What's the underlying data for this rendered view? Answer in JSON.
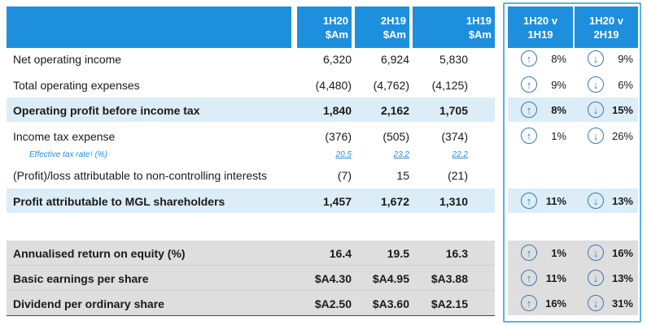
{
  "header": {
    "col1": [
      "1H20",
      "$Am"
    ],
    "col2": [
      "2H19",
      "$Am"
    ],
    "col3": [
      "1H19",
      "$Am"
    ],
    "cmp1": [
      "1H20 v",
      "1H19"
    ],
    "cmp2": [
      "1H20 v",
      "2H19"
    ]
  },
  "rows": [
    {
      "label": "Net operating income",
      "v1": "6,320",
      "v2": "6,924",
      "v3": "5,830",
      "a1": "8%",
      "a2": "9%"
    },
    {
      "label": "Total operating expenses",
      "v1": "(4,480)",
      "v2": "(4,762)",
      "v3": "(4,125)",
      "a1": "9%",
      "a2": "6%"
    },
    {
      "label": "Operating profit before income tax",
      "v1": "1,840",
      "v2": "2,162",
      "v3": "1,705",
      "a1": "8%",
      "a2": "15%"
    },
    {
      "label": "Income tax expense",
      "v1": "(376)",
      "v2": "(505)",
      "v3": "(374)",
      "a1": "1%",
      "a2": "26%"
    },
    {
      "label": "Effective tax rate¹ (%)",
      "v1": "20.5",
      "v2": "23.2",
      "v3": "22.2"
    },
    {
      "label": "(Profit)/loss attributable to non-controlling interests",
      "v1": "(7)",
      "v2": "15",
      "v3": "(21)"
    },
    {
      "label": "Profit attributable to MGL shareholders",
      "v1": "1,457",
      "v2": "1,672",
      "v3": "1,310",
      "a1": "11%",
      "a2": "13%"
    },
    {
      "label": "Annualised return on equity (%)",
      "v1": "16.4",
      "v2": "19.5",
      "v3": "16.3",
      "a1": "1%",
      "a2": "16%"
    },
    {
      "label": "Basic earnings per share",
      "v1": "$A4.30",
      "v2": "$A4.95",
      "v3": "$A3.88",
      "a1": "11%",
      "a2": "13%"
    },
    {
      "label": "Dividend per ordinary share",
      "v1": "$A2.50",
      "v2": "$A3.60",
      "v3": "$A2.15",
      "a1": "16%",
      "a2": "31%"
    }
  ],
  "icons": {
    "up": "up-arrow-circle-icon",
    "down": "down-arrow-circle-icon"
  },
  "colors": {
    "header_blue": "#1e8fdc",
    "highlight": "#dcedf8",
    "gray": "#dedede",
    "accent": "#5bb3e0"
  }
}
